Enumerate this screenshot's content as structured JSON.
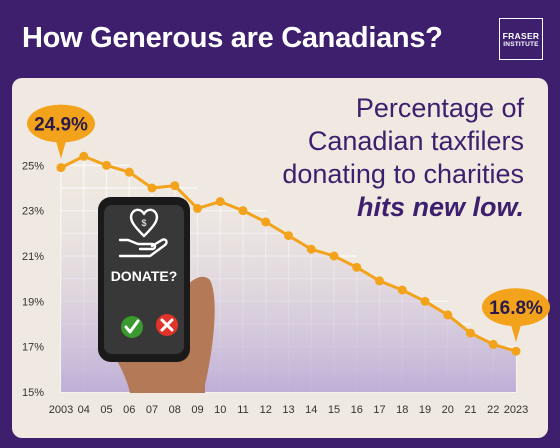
{
  "header": {
    "title": "How Generous are Canadians?"
  },
  "logo": {
    "line1": "FRASER",
    "line2": "INSTITUTE"
  },
  "headline": {
    "line1": "Percentage of",
    "line2": "Canadian taxfilers",
    "line3": "donating to charities",
    "line4": "hits new low."
  },
  "phone": {
    "button_label": "DONATE?"
  },
  "colors": {
    "background": "#3d1f6e",
    "panel": "#efe9e1",
    "line": "#f2a31b",
    "bubble": "#f2a31b",
    "headline": "#3d1f6e"
  },
  "chart_data": {
    "type": "line",
    "x": [
      "2003",
      "04",
      "05",
      "06",
      "07",
      "08",
      "09",
      "10",
      "11",
      "12",
      "13",
      "14",
      "15",
      "16",
      "17",
      "18",
      "19",
      "20",
      "21",
      "22",
      "2023"
    ],
    "values": [
      24.9,
      25.4,
      25.0,
      24.7,
      24.0,
      24.1,
      23.1,
      23.4,
      23.0,
      22.5,
      21.9,
      21.3,
      21.0,
      20.5,
      19.9,
      19.5,
      19.0,
      18.4,
      17.6,
      17.1,
      16.8
    ],
    "ylim": [
      15,
      27
    ],
    "yticks": [
      "25%",
      "23%",
      "21%",
      "19%",
      "17%",
      "15%"
    ],
    "ytick_values": [
      25,
      23,
      21,
      19,
      17,
      15
    ],
    "annotations": [
      {
        "label": "24.9%",
        "index": 0
      },
      {
        "label": "16.8%",
        "index": 20
      }
    ],
    "grid": true
  }
}
